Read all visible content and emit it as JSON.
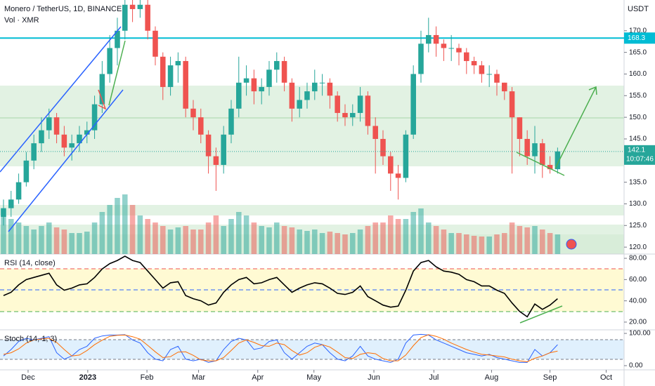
{
  "chart_data": [
    {
      "type": "candlestick",
      "title": "Monero / TetherUS, 1D, BINANCE",
      "subtitle": "Vol · XMR",
      "currency": "USDT",
      "countdown": "10:07:46",
      "up_color": "#26a69a",
      "down_color": "#ef5350",
      "open": [
        127,
        129,
        131,
        135,
        140,
        144,
        147,
        150,
        146,
        143,
        144,
        146,
        147,
        153,
        160,
        166,
        170,
        176,
        175,
        176,
        170,
        164,
        157,
        162,
        163,
        152,
        150,
        146,
        141,
        139,
        146,
        152,
        158,
        159,
        156,
        157,
        161,
        163,
        158,
        152,
        154,
        156,
        158,
        158,
        155,
        151,
        150,
        151,
        155,
        148,
        145,
        141,
        137,
        136,
        146,
        160,
        167,
        169,
        167,
        166,
        166,
        165,
        163,
        162,
        160,
        160,
        158,
        156,
        150,
        145,
        141,
        144,
        139,
        138
      ],
      "high": [
        131,
        133,
        137,
        142,
        146,
        150,
        152,
        151,
        148,
        146,
        148,
        149,
        155,
        163,
        169,
        173,
        178,
        178,
        178,
        178,
        171,
        165,
        164,
        165,
        164,
        154,
        152,
        147,
        143,
        148,
        154,
        164,
        162,
        161,
        159,
        163,
        165,
        164,
        159,
        157,
        158,
        161,
        160,
        159,
        156,
        153,
        153,
        157,
        156,
        150,
        147,
        142,
        139,
        147,
        162,
        170,
        173,
        171,
        168,
        169,
        167,
        166,
        164,
        163,
        162,
        161,
        158,
        157,
        150,
        147,
        148,
        145,
        141,
        143
      ],
      "low": [
        125,
        127,
        130,
        134,
        138,
        142,
        145,
        144,
        141,
        140,
        142,
        144,
        145,
        151,
        158,
        162,
        168,
        172,
        173,
        168,
        162,
        154,
        155,
        158,
        150,
        147,
        144,
        137,
        133,
        137,
        144,
        150,
        155,
        153,
        153,
        155,
        158,
        156,
        149,
        150,
        152,
        154,
        155,
        152,
        149,
        148,
        148,
        149,
        146,
        137,
        139,
        133,
        131,
        135,
        145,
        158,
        165,
        164,
        163,
        163,
        162,
        160,
        160,
        158,
        157,
        155,
        154,
        137,
        141,
        139,
        137,
        136,
        137,
        137
      ],
      "close": [
        129,
        131,
        135,
        140,
        144,
        147,
        150,
        146,
        143,
        144,
        146,
        147,
        153,
        160,
        166,
        170,
        176,
        175,
        176,
        170,
        164,
        157,
        162,
        163,
        152,
        150,
        146,
        141,
        139,
        146,
        152,
        158,
        159,
        156,
        157,
        161,
        163,
        158,
        152,
        154,
        156,
        158,
        158,
        155,
        151,
        150,
        151,
        155,
        148,
        145,
        141,
        137,
        136,
        146,
        160,
        167,
        169,
        167,
        166,
        166,
        165,
        163,
        162,
        160,
        160,
        158,
        156,
        150,
        145,
        141,
        144,
        139,
        138,
        142.1
      ],
      "volume": [
        55,
        50,
        45,
        40,
        35,
        40,
        45,
        38,
        35,
        30,
        30,
        32,
        45,
        60,
        70,
        80,
        85,
        70,
        55,
        50,
        45,
        40,
        35,
        38,
        40,
        35,
        35,
        45,
        55,
        40,
        50,
        60,
        55,
        45,
        40,
        38,
        45,
        40,
        38,
        35,
        33,
        35,
        30,
        32,
        30,
        28,
        30,
        35,
        40,
        45,
        45,
        55,
        50,
        50,
        60,
        65,
        45,
        40,
        35,
        30,
        30,
        28,
        26,
        25,
        25,
        28,
        30,
        45,
        40,
        38,
        40,
        35,
        30,
        28
      ],
      "hline": {
        "value": 168.3,
        "color": "#00bcd4"
      },
      "xlim": [
        -0.46,
        81.76
      ],
      "ylim": [
        118.4,
        177.1
      ],
      "yticks": [
        {
          "value": 120,
          "label": "120.0"
        },
        {
          "value": 125,
          "label": "125.0"
        },
        {
          "value": 130,
          "label": "130.0"
        },
        {
          "value": 135,
          "label": "135.0"
        },
        {
          "value": 140,
          "label": "140.0"
        },
        {
          "value": 145,
          "label": "145.0"
        },
        {
          "value": 150,
          "label": "150.0"
        },
        {
          "value": 155,
          "label": "155.0"
        },
        {
          "value": 160,
          "label": "160.0"
        },
        {
          "value": 165,
          "label": "165.0"
        },
        {
          "value": 170,
          "label": "170.0"
        }
      ]
    },
    {
      "type": "line",
      "title": "RSI (14, close)",
      "series": [
        {
          "color": "#000000",
          "values": [
            45,
            48,
            55,
            60,
            62,
            64,
            66,
            55,
            50,
            52,
            55,
            56,
            62,
            70,
            75,
            78,
            82,
            78,
            76,
            68,
            60,
            52,
            57,
            58,
            45,
            42,
            40,
            36,
            38,
            48,
            55,
            60,
            62,
            56,
            57,
            60,
            62,
            55,
            48,
            52,
            55,
            57,
            56,
            52,
            47,
            46,
            48,
            54,
            44,
            40,
            36,
            34,
            35,
            50,
            68,
            76,
            78,
            72,
            68,
            67,
            65,
            60,
            58,
            54,
            54,
            50,
            47,
            38,
            30,
            25,
            37,
            32,
            36,
            42
          ]
        }
      ],
      "xlim": [
        -0.46,
        81.76
      ],
      "ylim": [
        12.7,
        84
      ],
      "yticks": [
        {
          "value": 20,
          "label": "20.00"
        },
        {
          "value": 40,
          "label": "40.00"
        },
        {
          "value": 60,
          "label": "60.00"
        },
        {
          "value": 80,
          "label": "80.00"
        }
      ]
    },
    {
      "type": "line",
      "title": "Stoch (14, 1, 3)",
      "series": [
        {
          "color": "#2962ff",
          "values": [
            30,
            50,
            75,
            85,
            80,
            85,
            90,
            40,
            20,
            30,
            50,
            60,
            85,
            92,
            95,
            95,
            96,
            80,
            70,
            40,
            20,
            15,
            50,
            60,
            20,
            15,
            20,
            10,
            15,
            50,
            75,
            85,
            80,
            50,
            55,
            75,
            80,
            40,
            20,
            40,
            60,
            70,
            65,
            40,
            20,
            15,
            30,
            60,
            30,
            20,
            15,
            10,
            20,
            70,
            95,
            97,
            95,
            80,
            70,
            60,
            50,
            40,
            35,
            30,
            35,
            25,
            20,
            15,
            10,
            10,
            50,
            30,
            40,
            65
          ]
        },
        {
          "color": "#ff6d00",
          "values": [
            35,
            40,
            52,
            70,
            80,
            83,
            85,
            72,
            50,
            30,
            33,
            47,
            65,
            79,
            91,
            94,
            95,
            90,
            82,
            63,
            43,
            25,
            28,
            42,
            43,
            32,
            18,
            15,
            15,
            25,
            47,
            70,
            80,
            72,
            62,
            60,
            70,
            65,
            47,
            33,
            40,
            57,
            65,
            58,
            42,
            25,
            22,
            35,
            40,
            37,
            22,
            15,
            15,
            33,
            62,
            87,
            96,
            91,
            82,
            70,
            60,
            50,
            42,
            35,
            33,
            30,
            27,
            20,
            15,
            12,
            23,
            30,
            40,
            45
          ]
        }
      ],
      "xlim": [
        -0.46,
        81.76
      ],
      "ylim": [
        -13,
        111
      ],
      "yticks": [
        {
          "value": 0,
          "label": "0.00"
        },
        {
          "value": 100,
          "label": "100.00"
        }
      ],
      "xticks": [
        {
          "value": 3.24,
          "label": "Dec"
        },
        {
          "value": 11.1,
          "label": "2023"
        },
        {
          "value": 18.9,
          "label": "Feb"
        },
        {
          "value": 25.7,
          "label": "Mar"
        },
        {
          "value": 33.5,
          "label": "Apr"
        },
        {
          "value": 40.9,
          "label": "May"
        },
        {
          "value": 48.8,
          "label": "Jun"
        },
        {
          "value": 56.7,
          "label": "Jul"
        },
        {
          "value": 64.3,
          "label": "Aug"
        },
        {
          "value": 72.0,
          "label": "Sep"
        },
        {
          "value": 79.4,
          "label": "Oct"
        }
      ]
    }
  ]
}
